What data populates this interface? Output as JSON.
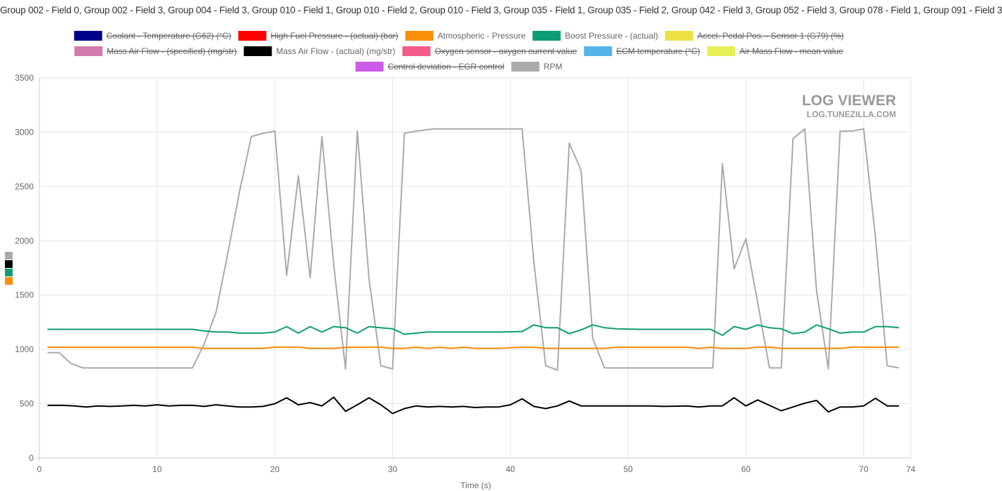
{
  "title": "Group 002 - Field 0, Group 002 - Field 3, Group 004 - Field 3, Group 010 - Field 1, Group 010 - Field 2, Group 010 - Field 3, Group 035 - Field 1, Group 035 - Field 2, Group 042 - Field 3, Group 052 - Field 3, Group 078 - Field 1, Group 091 - Field 3",
  "watermark": {
    "line1": "LOG VIEWER",
    "line2": "LOG.TUNEZILLA.COM"
  },
  "side_swatches": [
    "#aaaaaa",
    "#000000",
    "#0e9c74",
    "#f98e0a"
  ],
  "chart_data": {
    "type": "line",
    "xlabel": "Time (s)",
    "ylabel": "",
    "xlim": [
      0,
      74
    ],
    "ylim": [
      0,
      3500
    ],
    "xticks": [
      0,
      10,
      20,
      30,
      40,
      50,
      60,
      70,
      74
    ],
    "yticks": [
      0,
      500,
      1000,
      1500,
      2000,
      2500,
      3000,
      3500
    ],
    "grid": true,
    "legend_position": "top",
    "legend": [
      {
        "name": "Coolant - Temperature (G62) (°C)",
        "color": "#00008b",
        "hidden": true
      },
      {
        "name": "High Fuel Pressure - (actual) (bar)",
        "color": "#ff0000",
        "hidden": true
      },
      {
        "name": "Atmospheric - Pressure",
        "color": "#f98e0a",
        "hidden": false
      },
      {
        "name": "Boost Pressure - (actual)",
        "color": "#0e9c74",
        "hidden": false
      },
      {
        "name": "Accel. Pedal Pos. - Sensor 1 (G79) (%)",
        "color": "#eee044",
        "hidden": true
      },
      {
        "name": "Mass Air Flow - (specified) (mg/str)",
        "color": "#d57aac",
        "hidden": true
      },
      {
        "name": "Mass Air Flow - (actual) (mg/str)",
        "color": "#000000",
        "hidden": false
      },
      {
        "name": "Oxygen sensor - oxygen current value",
        "color": "#f25b8a",
        "hidden": true
      },
      {
        "name": "ECM temperature (°C)",
        "color": "#56b4e9",
        "hidden": true
      },
      {
        "name": "Air Mass Flow - mean value",
        "color": "#e6f054",
        "hidden": true
      },
      {
        "name": "Control deviation - EGR control",
        "color": "#cc5be8",
        "hidden": true
      },
      {
        "name": "RPM",
        "color": "#aaaaaa",
        "hidden": false
      }
    ],
    "series": [
      {
        "name": "RPM",
        "color": "#aaaaaa",
        "points": [
          [
            0.7,
            970
          ],
          [
            1.7,
            970
          ],
          [
            2.7,
            870
          ],
          [
            3.7,
            830
          ],
          [
            5,
            830
          ],
          [
            7,
            830
          ],
          [
            9,
            830
          ],
          [
            11,
            830
          ],
          [
            13,
            830
          ],
          [
            14,
            1050
          ],
          [
            15,
            1340
          ],
          [
            16,
            1880
          ],
          [
            17,
            2450
          ],
          [
            18,
            2960
          ],
          [
            19,
            2990
          ],
          [
            20,
            3010
          ],
          [
            21,
            1680
          ],
          [
            22,
            2600
          ],
          [
            23,
            1660
          ],
          [
            24,
            2960
          ],
          [
            25,
            1780
          ],
          [
            26,
            820
          ],
          [
            27,
            3010
          ],
          [
            28,
            1650
          ],
          [
            29,
            850
          ],
          [
            30,
            820
          ],
          [
            31,
            2990
          ],
          [
            32,
            3010
          ],
          [
            33.5,
            3030
          ],
          [
            35,
            3030
          ],
          [
            37,
            3030
          ],
          [
            39,
            3030
          ],
          [
            41,
            3030
          ],
          [
            42,
            1800
          ],
          [
            43,
            850
          ],
          [
            44,
            810
          ],
          [
            45,
            2900
          ],
          [
            46,
            2650
          ],
          [
            47,
            1100
          ],
          [
            48,
            830
          ],
          [
            50,
            830
          ],
          [
            52,
            830
          ],
          [
            54,
            830
          ],
          [
            56,
            830
          ],
          [
            57.2,
            830
          ],
          [
            58,
            2710
          ],
          [
            59,
            1740
          ],
          [
            60,
            2020
          ],
          [
            61,
            1430
          ],
          [
            62,
            830
          ],
          [
            63,
            830
          ],
          [
            64,
            2940
          ],
          [
            65,
            3030
          ],
          [
            66,
            1540
          ],
          [
            67,
            820
          ],
          [
            68,
            3010
          ],
          [
            69,
            3010
          ],
          [
            70,
            3030
          ],
          [
            71,
            2030
          ],
          [
            72,
            850
          ],
          [
            73,
            830
          ]
        ]
      },
      {
        "name": "Boost Pressure - (actual)",
        "color": "#0e9c74",
        "points": [
          [
            0.7,
            1185
          ],
          [
            3,
            1185
          ],
          [
            6,
            1185
          ],
          [
            9,
            1185
          ],
          [
            12,
            1185
          ],
          [
            13,
            1185
          ],
          [
            14,
            1170
          ],
          [
            15,
            1160
          ],
          [
            16,
            1160
          ],
          [
            17,
            1150
          ],
          [
            18,
            1150
          ],
          [
            19,
            1150
          ],
          [
            20,
            1160
          ],
          [
            21,
            1210
          ],
          [
            22,
            1150
          ],
          [
            23,
            1210
          ],
          [
            24,
            1160
          ],
          [
            25,
            1210
          ],
          [
            26,
            1200
          ],
          [
            27,
            1150
          ],
          [
            28,
            1210
          ],
          [
            29,
            1200
          ],
          [
            30,
            1190
          ],
          [
            31,
            1140
          ],
          [
            32,
            1150
          ],
          [
            33,
            1160
          ],
          [
            35,
            1160
          ],
          [
            37,
            1160
          ],
          [
            39,
            1160
          ],
          [
            41,
            1165
          ],
          [
            42,
            1225
          ],
          [
            43,
            1200
          ],
          [
            44,
            1200
          ],
          [
            45,
            1145
          ],
          [
            46,
            1180
          ],
          [
            47,
            1225
          ],
          [
            48,
            1200
          ],
          [
            49,
            1190
          ],
          [
            51,
            1185
          ],
          [
            53,
            1185
          ],
          [
            55,
            1185
          ],
          [
            57,
            1185
          ],
          [
            58,
            1130
          ],
          [
            59,
            1210
          ],
          [
            60,
            1185
          ],
          [
            61,
            1225
          ],
          [
            62,
            1200
          ],
          [
            63,
            1190
          ],
          [
            64,
            1145
          ],
          [
            65,
            1160
          ],
          [
            66,
            1225
          ],
          [
            67,
            1190
          ],
          [
            68,
            1150
          ],
          [
            69,
            1160
          ],
          [
            70,
            1160
          ],
          [
            71,
            1210
          ],
          [
            72,
            1210
          ],
          [
            73,
            1200
          ]
        ]
      },
      {
        "name": "Atmospheric - Pressure",
        "color": "#f98e0a",
        "points": [
          [
            0.7,
            1020
          ],
          [
            3,
            1020
          ],
          [
            6,
            1020
          ],
          [
            9,
            1020
          ],
          [
            12,
            1020
          ],
          [
            13,
            1020
          ],
          [
            14,
            1010
          ],
          [
            16,
            1010
          ],
          [
            18,
            1010
          ],
          [
            19,
            1010
          ],
          [
            20,
            1020
          ],
          [
            22,
            1020
          ],
          [
            23,
            1010
          ],
          [
            25,
            1010
          ],
          [
            26,
            1020
          ],
          [
            29,
            1020
          ],
          [
            30,
            1010
          ],
          [
            31,
            1010
          ],
          [
            32,
            1020
          ],
          [
            33,
            1010
          ],
          [
            34,
            1020
          ],
          [
            35,
            1010
          ],
          [
            36,
            1020
          ],
          [
            37,
            1010
          ],
          [
            39,
            1010
          ],
          [
            41,
            1020
          ],
          [
            42,
            1020
          ],
          [
            43,
            1010
          ],
          [
            45,
            1010
          ],
          [
            47,
            1010
          ],
          [
            48,
            1010
          ],
          [
            49,
            1020
          ],
          [
            51,
            1020
          ],
          [
            53,
            1020
          ],
          [
            55,
            1020
          ],
          [
            56,
            1010
          ],
          [
            57,
            1020
          ],
          [
            58,
            1010
          ],
          [
            60,
            1010
          ],
          [
            61,
            1020
          ],
          [
            62,
            1020
          ],
          [
            63,
            1010
          ],
          [
            65,
            1010
          ],
          [
            67,
            1010
          ],
          [
            68,
            1010
          ],
          [
            69,
            1020
          ],
          [
            71,
            1020
          ],
          [
            73,
            1020
          ]
        ]
      },
      {
        "name": "Mass Air Flow - (actual) (mg/str)",
        "color": "#000000",
        "points": [
          [
            0.7,
            485
          ],
          [
            2,
            485
          ],
          [
            3,
            480
          ],
          [
            4,
            470
          ],
          [
            5,
            480
          ],
          [
            6,
            475
          ],
          [
            7,
            480
          ],
          [
            8,
            485
          ],
          [
            9,
            480
          ],
          [
            10,
            490
          ],
          [
            11,
            480
          ],
          [
            12,
            485
          ],
          [
            13,
            485
          ],
          [
            14,
            475
          ],
          [
            15,
            490
          ],
          [
            16,
            480
          ],
          [
            17,
            470
          ],
          [
            18,
            470
          ],
          [
            19,
            475
          ],
          [
            20,
            500
          ],
          [
            21,
            555
          ],
          [
            22,
            490
          ],
          [
            23,
            510
          ],
          [
            24,
            480
          ],
          [
            25,
            560
          ],
          [
            26,
            430
          ],
          [
            27,
            490
          ],
          [
            28,
            555
          ],
          [
            29,
            490
          ],
          [
            30,
            410
          ],
          [
            31,
            455
          ],
          [
            32,
            480
          ],
          [
            33,
            470
          ],
          [
            34,
            475
          ],
          [
            35,
            470
          ],
          [
            36,
            475
          ],
          [
            37,
            465
          ],
          [
            38,
            470
          ],
          [
            39,
            470
          ],
          [
            40,
            490
          ],
          [
            41,
            545
          ],
          [
            42,
            475
          ],
          [
            43,
            455
          ],
          [
            44,
            480
          ],
          [
            45,
            525
          ],
          [
            46,
            480
          ],
          [
            48,
            480
          ],
          [
            50,
            480
          ],
          [
            52,
            480
          ],
          [
            53,
            475
          ],
          [
            55,
            480
          ],
          [
            56,
            470
          ],
          [
            57,
            480
          ],
          [
            58,
            480
          ],
          [
            59,
            555
          ],
          [
            60,
            480
          ],
          [
            61,
            535
          ],
          [
            62,
            485
          ],
          [
            63,
            435
          ],
          [
            64,
            470
          ],
          [
            65,
            505
          ],
          [
            66,
            530
          ],
          [
            67,
            425
          ],
          [
            68,
            470
          ],
          [
            69,
            470
          ],
          [
            70,
            480
          ],
          [
            71,
            550
          ],
          [
            72,
            480
          ],
          [
            73,
            480
          ]
        ]
      }
    ]
  }
}
